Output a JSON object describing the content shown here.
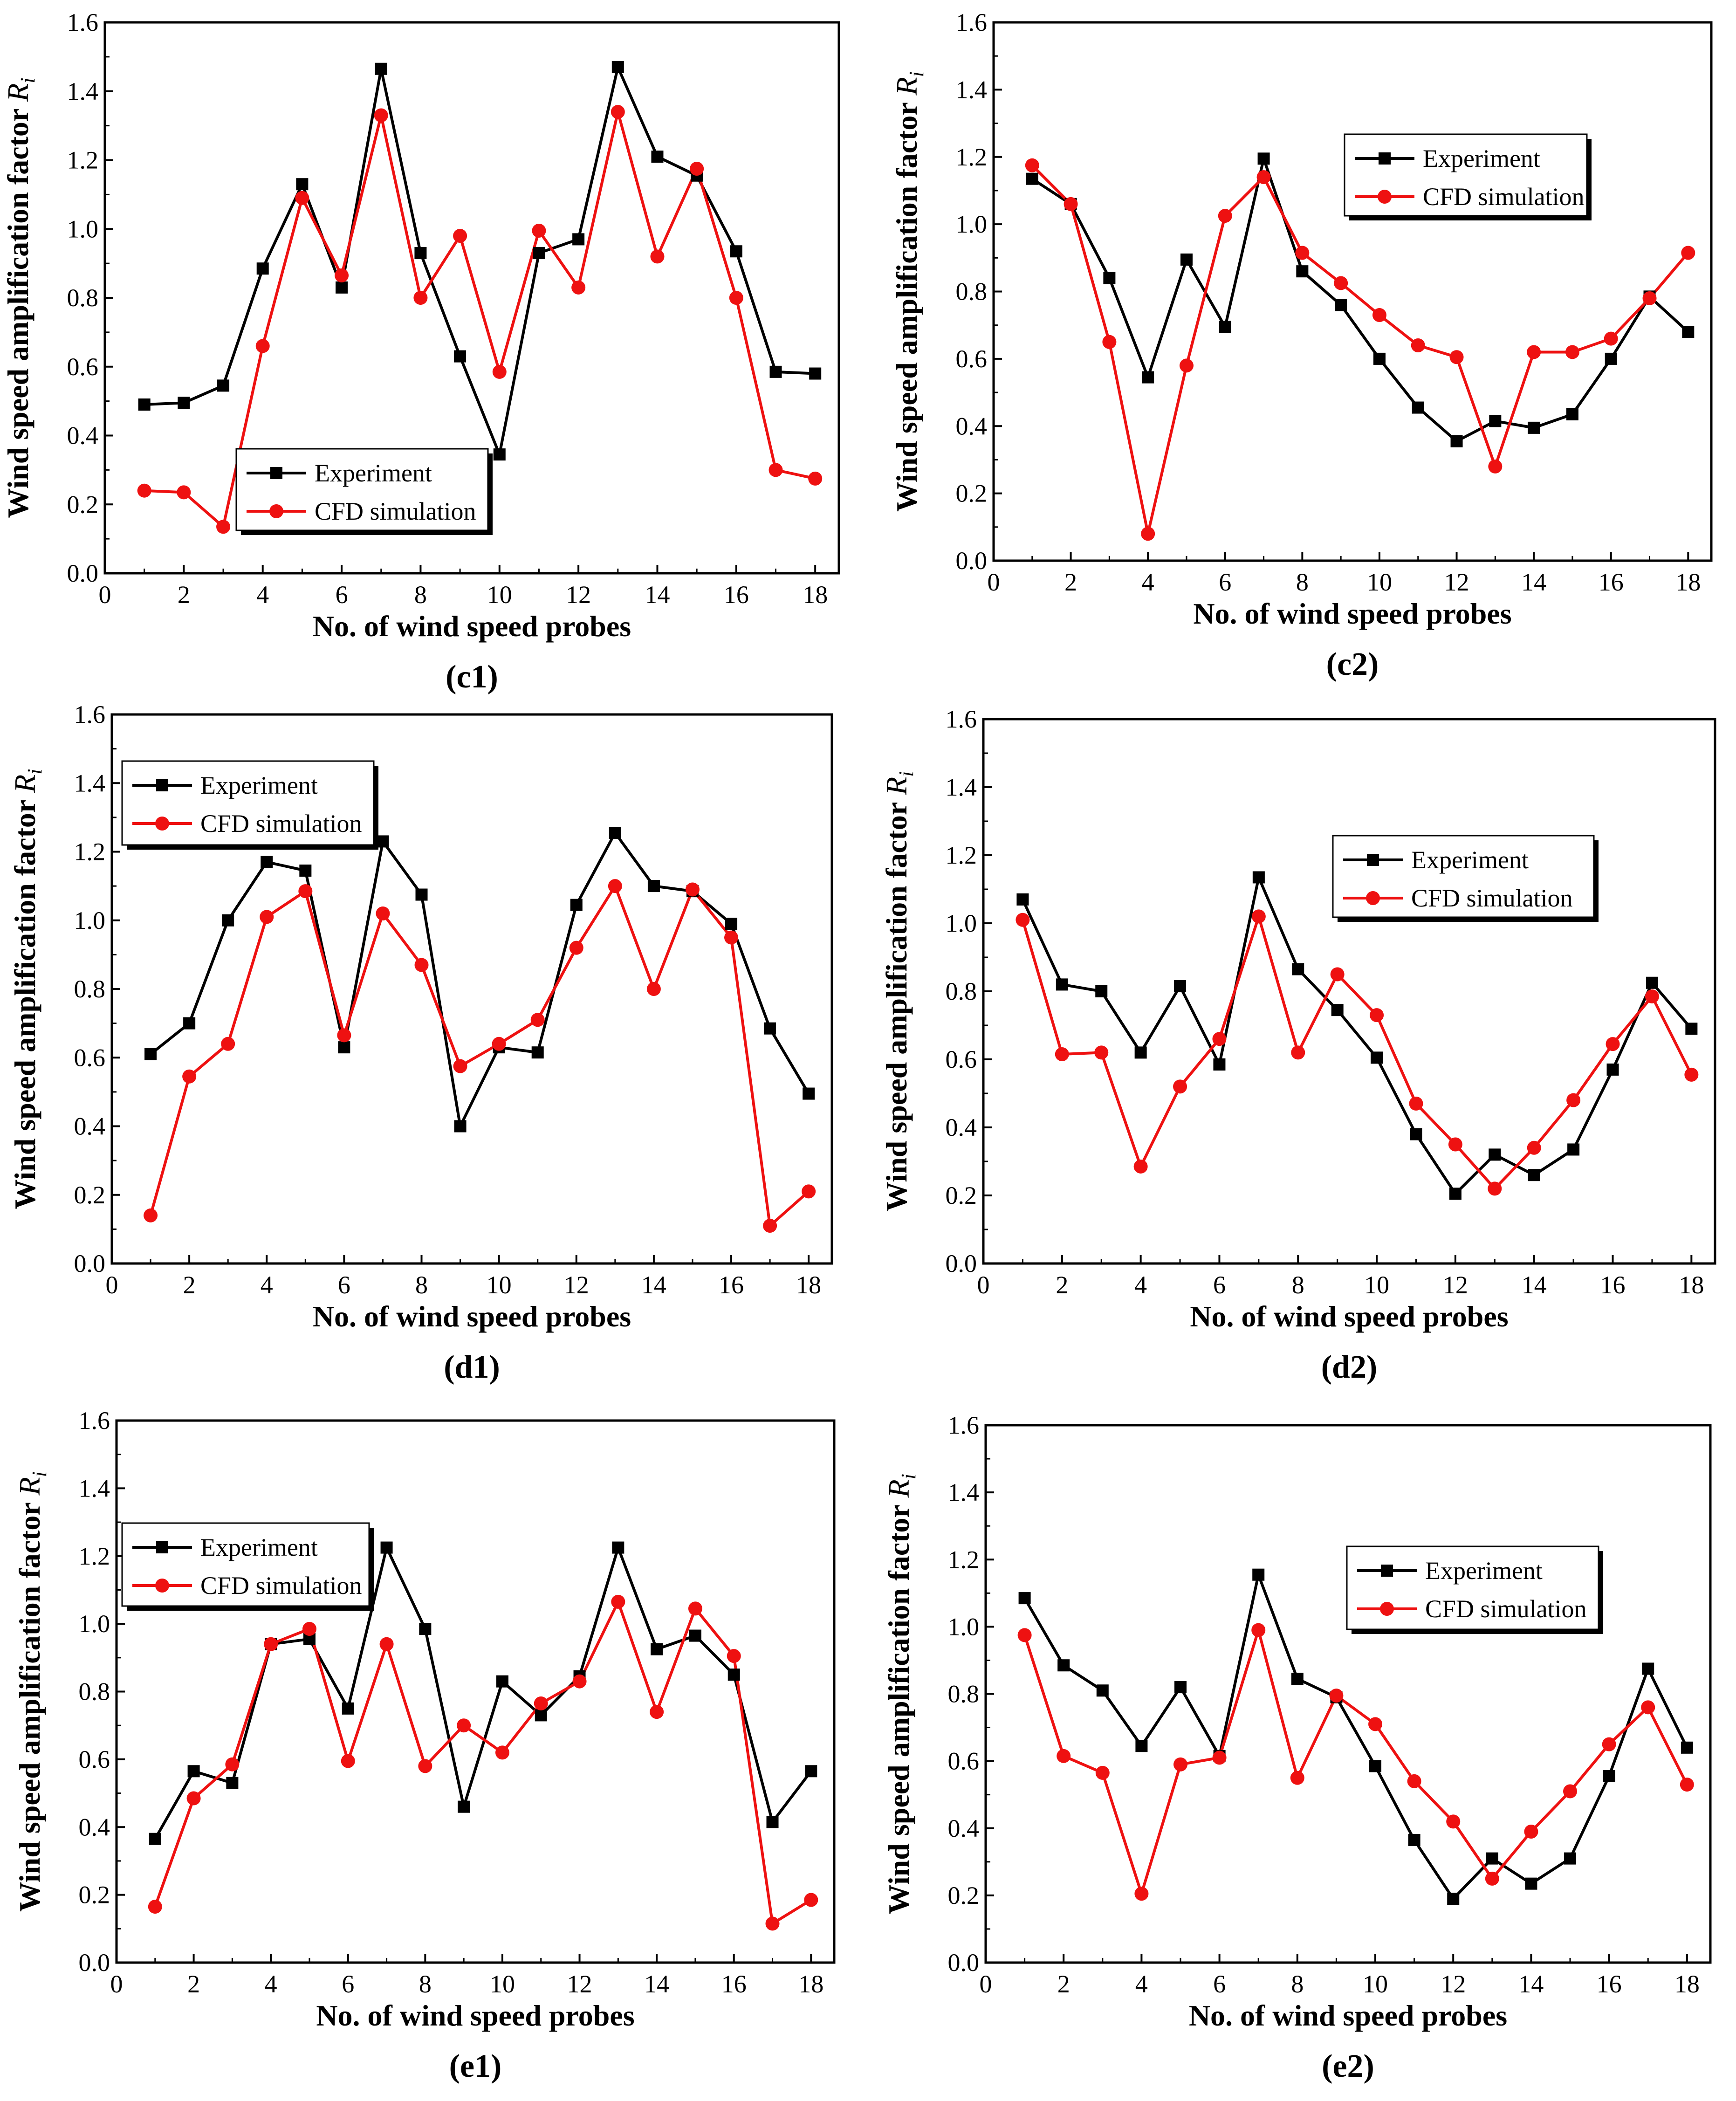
{
  "figure": {
    "colors": {
      "experiment": "#000000",
      "cfd": "#ee1111"
    },
    "legend": {
      "experiment": "Experiment",
      "cfd": "CFD simulation"
    }
  },
  "chart_data": [
    {
      "type": "line",
      "panel": "c1",
      "caption": "(c1)",
      "xlabel": "No. of wind speed probes",
      "ylabel": "Wind speed amplification factor",
      "ylabel_symbol": "R",
      "ylabel_subscript": "i",
      "xlim": [
        0,
        18.6
      ],
      "ylim": [
        0,
        1.6
      ],
      "xticks": [
        0,
        2,
        4,
        6,
        8,
        10,
        12,
        14,
        16,
        18
      ],
      "xtick_labels": [
        "0",
        "2",
        "4",
        "6",
        "8",
        "10",
        "12",
        "14",
        "16",
        "18"
      ],
      "yticks": [
        0,
        0.2,
        0.4,
        0.6,
        0.8,
        1.0,
        1.2,
        1.4,
        1.6
      ],
      "ytick_labels": [
        "0.0",
        "0.2",
        "0.4",
        "0.6",
        "0.8",
        "1.0",
        "1.2",
        "1.4",
        "1.6"
      ],
      "legend_position": "bottom-left",
      "x": [
        1,
        2,
        3,
        4,
        5,
        6,
        7,
        8,
        9,
        10,
        11,
        12,
        13,
        14,
        15,
        16,
        17,
        18
      ],
      "series": [
        {
          "name": "Experiment",
          "marker": "square",
          "color": "#000000",
          "values": [
            0.49,
            0.495,
            0.545,
            0.885,
            1.13,
            0.83,
            1.465,
            0.93,
            0.63,
            0.345,
            0.93,
            0.97,
            1.47,
            1.21,
            1.155,
            0.935,
            0.585,
            0.58
          ]
        },
        {
          "name": "CFD simulation",
          "marker": "circle",
          "color": "#ee1111",
          "values": [
            0.24,
            0.235,
            0.135,
            0.66,
            1.09,
            0.865,
            1.33,
            0.8,
            0.98,
            0.585,
            0.995,
            0.83,
            1.34,
            0.92,
            1.175,
            0.8,
            0.3,
            0.275
          ]
        }
      ]
    },
    {
      "type": "line",
      "panel": "c2",
      "caption": "(c2)",
      "xlabel": "No. of wind speed probes",
      "ylabel": "Wind speed amplification factor",
      "ylabel_symbol": "R",
      "ylabel_subscript": "i",
      "xlim": [
        0,
        18.6
      ],
      "ylim": [
        0,
        1.6
      ],
      "xticks": [
        0,
        2,
        4,
        6,
        8,
        10,
        12,
        14,
        16,
        18
      ],
      "xtick_labels": [
        "0",
        "2",
        "4",
        "6",
        "8",
        "10",
        "12",
        "14",
        "16",
        "18"
      ],
      "yticks": [
        0,
        0.2,
        0.4,
        0.6,
        0.8,
        1.0,
        1.2,
        1.4,
        1.6
      ],
      "ytick_labels": [
        "0.0",
        "0.2",
        "0.4",
        "0.6",
        "0.8",
        "1.0",
        "1.2",
        "1.4",
        "1.6"
      ],
      "legend_position": "top-right",
      "x": [
        1,
        2,
        3,
        4,
        5,
        6,
        7,
        8,
        9,
        10,
        11,
        12,
        13,
        14,
        15,
        16,
        17,
        18
      ],
      "series": [
        {
          "name": "Experiment",
          "marker": "square",
          "color": "#000000",
          "values": [
            1.135,
            1.06,
            0.84,
            0.545,
            0.895,
            0.695,
            1.195,
            0.86,
            0.76,
            0.6,
            0.455,
            0.355,
            0.415,
            0.395,
            0.435,
            0.6,
            0.785,
            0.68
          ]
        },
        {
          "name": "CFD simulation",
          "marker": "circle",
          "color": "#ee1111",
          "values": [
            1.175,
            1.06,
            0.65,
            0.08,
            0.58,
            1.025,
            1.14,
            0.915,
            0.825,
            0.73,
            0.64,
            0.605,
            0.28,
            0.62,
            0.62,
            0.66,
            0.78,
            0.915
          ]
        }
      ]
    },
    {
      "type": "line",
      "panel": "d1",
      "caption": "(d1)",
      "xlabel": "No. of wind speed probes",
      "ylabel": "Wind speed amplification factor",
      "ylabel_symbol": "R",
      "ylabel_subscript": "i",
      "xlim": [
        0,
        18.6
      ],
      "ylim": [
        0,
        1.6
      ],
      "xticks": [
        0,
        2,
        4,
        6,
        8,
        10,
        12,
        14,
        16,
        18
      ],
      "xtick_labels": [
        "0",
        "2",
        "4",
        "6",
        "8",
        "10",
        "12",
        "14",
        "16",
        "18"
      ],
      "yticks": [
        0,
        0.2,
        0.4,
        0.6,
        0.8,
        1.0,
        1.2,
        1.4,
        1.6
      ],
      "ytick_labels": [
        "0.0",
        "0.2",
        "0.4",
        "0.6",
        "0.8",
        "1.0",
        "1.2",
        "1.4",
        "1.6"
      ],
      "legend_position": "top-left",
      "x": [
        1,
        2,
        3,
        4,
        5,
        6,
        7,
        8,
        9,
        10,
        11,
        12,
        13,
        14,
        15,
        16,
        17,
        18
      ],
      "series": [
        {
          "name": "Experiment",
          "marker": "square",
          "color": "#000000",
          "values": [
            0.61,
            0.7,
            1.0,
            1.17,
            1.145,
            0.63,
            1.23,
            1.075,
            0.4,
            0.63,
            0.615,
            1.045,
            1.255,
            1.1,
            1.085,
            0.99,
            0.685,
            0.495
          ]
        },
        {
          "name": "CFD simulation",
          "marker": "circle",
          "color": "#ee1111",
          "values": [
            0.14,
            0.545,
            0.64,
            1.01,
            1.085,
            0.665,
            1.02,
            0.87,
            0.575,
            0.64,
            0.71,
            0.92,
            1.1,
            0.8,
            1.09,
            0.95,
            0.11,
            0.21
          ]
        }
      ]
    },
    {
      "type": "line",
      "panel": "d2",
      "caption": "(d2)",
      "xlabel": "No. of wind speed probes",
      "ylabel": "Wind speed amplification factor",
      "ylabel_symbol": "R",
      "ylabel_subscript": "i",
      "xlim": [
        0,
        18.6
      ],
      "ylim": [
        0,
        1.6
      ],
      "xticks": [
        0,
        2,
        4,
        6,
        8,
        10,
        12,
        14,
        16,
        18
      ],
      "xtick_labels": [
        "0",
        "2",
        "4",
        "6",
        "8",
        "10",
        "12",
        "14",
        "16",
        "18"
      ],
      "yticks": [
        0,
        0.2,
        0.4,
        0.6,
        0.8,
        1.0,
        1.2,
        1.4,
        1.6
      ],
      "ytick_labels": [
        "0.0",
        "0.2",
        "0.4",
        "0.6",
        "0.8",
        "1.0",
        "1.2",
        "1.4",
        "1.6"
      ],
      "legend_position": "top-right",
      "x": [
        1,
        2,
        3,
        4,
        5,
        6,
        7,
        8,
        9,
        10,
        11,
        12,
        13,
        14,
        15,
        16,
        17,
        18
      ],
      "series": [
        {
          "name": "Experiment",
          "marker": "square",
          "color": "#000000",
          "values": [
            1.07,
            0.82,
            0.8,
            0.62,
            0.815,
            0.585,
            1.135,
            0.865,
            0.745,
            0.605,
            0.38,
            0.205,
            0.32,
            0.26,
            0.335,
            0.57,
            0.825,
            0.69
          ]
        },
        {
          "name": "CFD simulation",
          "marker": "circle",
          "color": "#ee1111",
          "values": [
            1.01,
            0.615,
            0.62,
            0.285,
            0.52,
            0.66,
            1.02,
            0.62,
            0.85,
            0.73,
            0.47,
            0.35,
            0.22,
            0.34,
            0.48,
            0.645,
            0.785,
            0.555
          ]
        }
      ]
    },
    {
      "type": "line",
      "panel": "e1",
      "caption": "(e1)",
      "xlabel": "No. of wind speed probes",
      "ylabel": "Wind speed amplification factor",
      "ylabel_symbol": "R",
      "ylabel_subscript": "i",
      "xlim": [
        0,
        18.6
      ],
      "ylim": [
        0,
        1.6
      ],
      "xticks": [
        0,
        2,
        4,
        6,
        8,
        10,
        12,
        14,
        16,
        18
      ],
      "xtick_labels": [
        "0",
        "2",
        "4",
        "6",
        "8",
        "10",
        "12",
        "14",
        "16",
        "18"
      ],
      "yticks": [
        0,
        0.2,
        0.4,
        0.6,
        0.8,
        1.0,
        1.2,
        1.4,
        1.6
      ],
      "ytick_labels": [
        "0.0",
        "0.2",
        "0.4",
        "0.6",
        "0.8",
        "1.0",
        "1.2",
        "1.4",
        "1.6"
      ],
      "legend_position": "top-left",
      "x": [
        1,
        2,
        3,
        4,
        5,
        6,
        7,
        8,
        9,
        10,
        11,
        12,
        13,
        14,
        15,
        16,
        17,
        18
      ],
      "series": [
        {
          "name": "Experiment",
          "marker": "square",
          "color": "#000000",
          "values": [
            0.365,
            0.565,
            0.53,
            0.94,
            0.955,
            0.75,
            1.225,
            0.985,
            0.46,
            0.83,
            0.73,
            0.845,
            1.225,
            0.925,
            0.965,
            0.85,
            0.415,
            0.565
          ]
        },
        {
          "name": "CFD simulation",
          "marker": "circle",
          "color": "#ee1111",
          "values": [
            0.165,
            0.485,
            0.585,
            0.94,
            0.985,
            0.595,
            0.94,
            0.58,
            0.7,
            0.62,
            0.765,
            0.83,
            1.065,
            0.74,
            1.045,
            0.905,
            0.115,
            0.185
          ]
        }
      ]
    },
    {
      "type": "line",
      "panel": "e2",
      "caption": "(e2)",
      "xlabel": "No. of wind speed probes",
      "ylabel": "Wind speed amplification factor",
      "ylabel_symbol": "R",
      "ylabel_subscript": "i",
      "xlim": [
        0,
        18.6
      ],
      "ylim": [
        0,
        1.6
      ],
      "xticks": [
        0,
        2,
        4,
        6,
        8,
        10,
        12,
        14,
        16,
        18
      ],
      "xtick_labels": [
        "0",
        "2",
        "4",
        "6",
        "8",
        "10",
        "12",
        "14",
        "16",
        "18"
      ],
      "yticks": [
        0,
        0.2,
        0.4,
        0.6,
        0.8,
        1.0,
        1.2,
        1.4,
        1.6
      ],
      "ytick_labels": [
        "0.0",
        "0.2",
        "0.4",
        "0.6",
        "0.8",
        "1.0",
        "1.2",
        "1.4",
        "1.6"
      ],
      "legend_position": "top-right",
      "x": [
        1,
        2,
        3,
        4,
        5,
        6,
        7,
        8,
        9,
        10,
        11,
        12,
        13,
        14,
        15,
        16,
        17,
        18
      ],
      "series": [
        {
          "name": "Experiment",
          "marker": "square",
          "color": "#000000",
          "values": [
            1.085,
            0.885,
            0.81,
            0.645,
            0.82,
            0.615,
            1.155,
            0.845,
            0.79,
            0.585,
            0.365,
            0.19,
            0.31,
            0.235,
            0.31,
            0.555,
            0.875,
            0.64
          ]
        },
        {
          "name": "CFD simulation",
          "marker": "circle",
          "color": "#ee1111",
          "values": [
            0.975,
            0.615,
            0.565,
            0.205,
            0.59,
            0.61,
            0.99,
            0.55,
            0.795,
            0.71,
            0.54,
            0.42,
            0.25,
            0.39,
            0.51,
            0.65,
            0.76,
            0.53
          ]
        }
      ]
    }
  ]
}
